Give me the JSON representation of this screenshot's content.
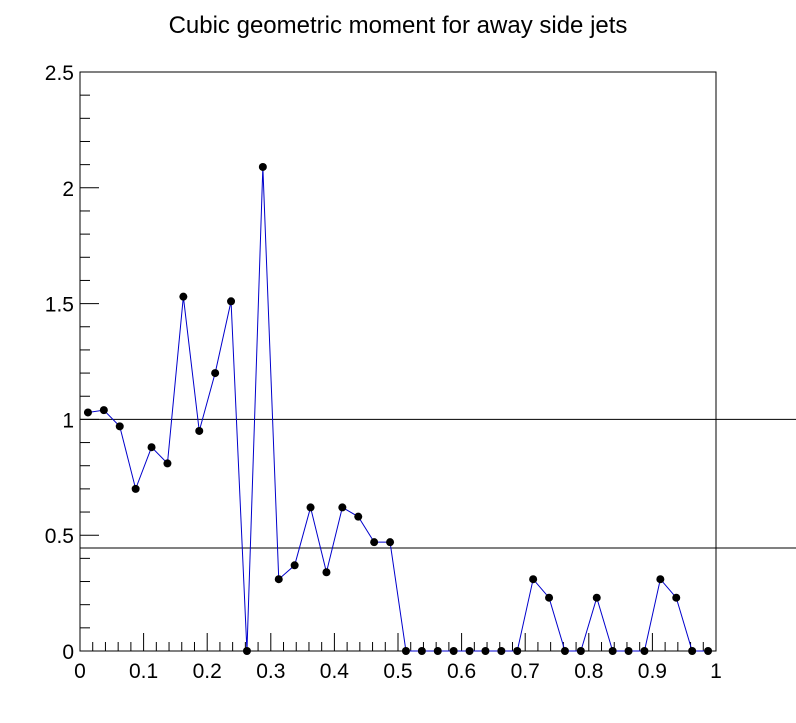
{
  "chart_data": {
    "type": "line",
    "title": "Cubic geometric moment for away side jets",
    "xlabel": "",
    "ylabel": "",
    "xlim": [
      0,
      1
    ],
    "ylim": [
      0,
      2.5
    ],
    "x_ticks": [
      "0",
      "0.1",
      "0.2",
      "0.3",
      "0.4",
      "0.5",
      "0.6",
      "0.7",
      "0.8",
      "0.9",
      "1"
    ],
    "y_ticks": [
      "0",
      "0.5",
      "1",
      "1.5",
      "2",
      "2.5"
    ],
    "grid": false,
    "legend": "none",
    "reference_lines_y": [
      1.0,
      0.445
    ],
    "line_color": "#0000cc",
    "marker_color": "#000000",
    "series": [
      {
        "x": [
          0.0125,
          0.0375,
          0.0625,
          0.0875,
          0.1125,
          0.1375,
          0.1625,
          0.1875,
          0.2125,
          0.2375,
          0.2625,
          0.2875,
          0.3125,
          0.3375,
          0.3625,
          0.3875,
          0.4125,
          0.4375,
          0.4625,
          0.4875,
          0.5125,
          0.5375,
          0.5625,
          0.5875,
          0.6125,
          0.6375,
          0.6625,
          0.6875,
          0.7125,
          0.7375,
          0.7625,
          0.7875,
          0.8125,
          0.8375,
          0.8625,
          0.8875,
          0.9125,
          0.9375,
          0.9625,
          0.9875
        ],
        "y": [
          1.03,
          1.04,
          0.97,
          0.7,
          0.88,
          0.81,
          1.53,
          0.95,
          1.2,
          1.51,
          0.0,
          2.09,
          0.31,
          0.37,
          0.62,
          0.34,
          0.62,
          0.58,
          0.47,
          0.47,
          0.0,
          0.0,
          0.0,
          0.0,
          0.0,
          0.0,
          0.0,
          0.0,
          0.31,
          0.23,
          0.0,
          0.0,
          0.23,
          0.0,
          0.0,
          0.0,
          0.31,
          0.23,
          0.0,
          0.0
        ]
      }
    ]
  }
}
